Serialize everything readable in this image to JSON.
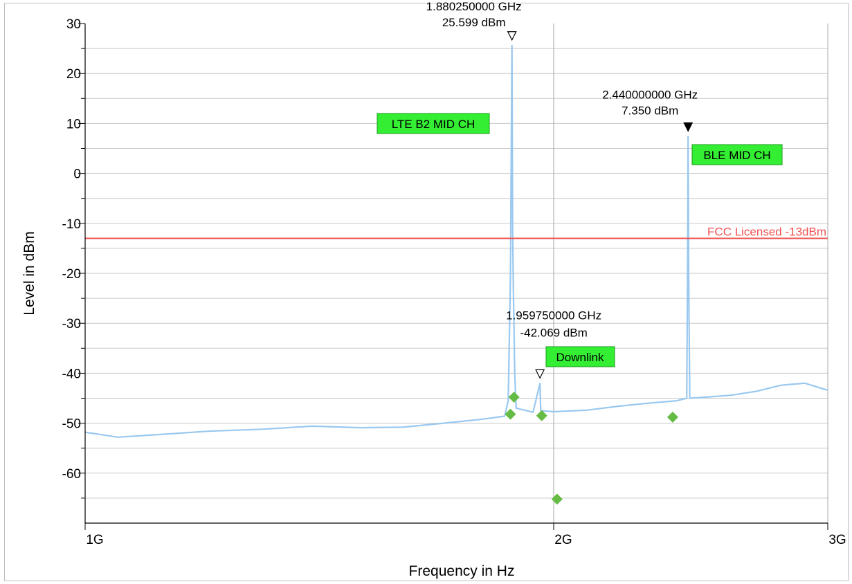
{
  "chart_data": {
    "type": "line",
    "xlabel": "Frequency in Hz",
    "ylabel": "Level in dBm",
    "x_scale": "log",
    "xlim_hz": [
      1000000000,
      3000000000
    ],
    "ylim": [
      -70,
      30
    ],
    "x_ticks": [
      {
        "value": 1000000000,
        "label": "1G"
      },
      {
        "value": 2000000000,
        "label": "2G"
      },
      {
        "value": 3000000000,
        "label": "3G"
      }
    ],
    "y_ticks": [
      {
        "value": 30,
        "label": "30"
      },
      {
        "value": 20,
        "label": "20"
      },
      {
        "value": 10,
        "label": "10"
      },
      {
        "value": 0,
        "label": "0"
      },
      {
        "value": -10,
        "label": "-10"
      },
      {
        "value": -20,
        "label": "-20"
      },
      {
        "value": -30,
        "label": "-30"
      },
      {
        "value": -40,
        "label": "-40"
      },
      {
        "value": -50,
        "label": "-50"
      },
      {
        "value": -60,
        "label": "-60"
      }
    ],
    "grid": true,
    "colors": {
      "trace": "#99c8f0",
      "limit_line": "#f05050",
      "badge_fill": "#33ee33",
      "diamond": "#66bb44",
      "grid": "#c8c8c8"
    },
    "series": [
      {
        "points": [
          [
            1000000000,
            -51.8
          ],
          [
            1050000000,
            -52.8
          ],
          [
            1100000000,
            -52.4
          ],
          [
            1150000000,
            -52.0
          ],
          [
            1200000000,
            -51.6
          ],
          [
            1300000000,
            -51.2
          ],
          [
            1400000000,
            -50.6
          ],
          [
            1500000000,
            -50.9
          ],
          [
            1600000000,
            -50.8
          ],
          [
            1700000000,
            -50.0
          ],
          [
            1800000000,
            -49.2
          ],
          [
            1860000000,
            -48.6
          ],
          [
            1870000000,
            -45.5
          ],
          [
            1876000000,
            -21.0
          ],
          [
            1878000000,
            0.0
          ],
          [
            1880250000,
            25.599
          ],
          [
            1882000000,
            -10.0
          ],
          [
            1884000000,
            -22.0
          ],
          [
            1888000000,
            -40.0
          ],
          [
            1892000000,
            -47.0
          ],
          [
            1940000000,
            -47.8
          ],
          [
            1959750000,
            -42.069
          ],
          [
            1962000000,
            -47.5
          ],
          [
            2000000000,
            -47.7
          ],
          [
            2100000000,
            -47.4
          ],
          [
            2200000000,
            -46.6
          ],
          [
            2300000000,
            -46.0
          ],
          [
            2400000000,
            -45.5
          ],
          [
            2435000000,
            -45.0
          ],
          [
            2438000000,
            -20.0
          ],
          [
            2440000000,
            7.35
          ],
          [
            2442000000,
            -20.0
          ],
          [
            2446000000,
            -45.0
          ],
          [
            2500000000,
            -44.8
          ],
          [
            2600000000,
            -44.4
          ],
          [
            2700000000,
            -43.6
          ],
          [
            2800000000,
            -42.4
          ],
          [
            2900000000,
            -42.0
          ],
          [
            3000000000,
            -43.4
          ]
        ]
      }
    ],
    "limit_line": {
      "label": "FCC Licensed -13dBm",
      "value": -13
    },
    "markers": [
      {
        "freq_hz": 1880250000,
        "level": 25.599,
        "freq_label": "1.880250000 GHz",
        "level_label": "25.599 dBm",
        "style": "open"
      },
      {
        "freq_hz": 2440000000,
        "level": 7.35,
        "freq_label": "2.440000000 GHz",
        "level_label": "7.350 dBm",
        "style": "filled"
      },
      {
        "freq_hz": 1959750000,
        "level": -42.069,
        "freq_label": "1.959750000 GHz",
        "level_label": "-42.069 dBm",
        "style": "open"
      }
    ],
    "annotations": [
      "LTE B2 MID CH",
      "BLE MID CH",
      "Downlink"
    ],
    "diamonds": [
      {
        "freq_hz": 1876000000,
        "level": -48.2
      },
      {
        "freq_hz": 1886000000,
        "level": -44.8
      },
      {
        "freq_hz": 1965000000,
        "level": -48.5
      },
      {
        "freq_hz": 2010000000,
        "level": -65.2
      },
      {
        "freq_hz": 2385000000,
        "level": -48.8
      }
    ]
  }
}
